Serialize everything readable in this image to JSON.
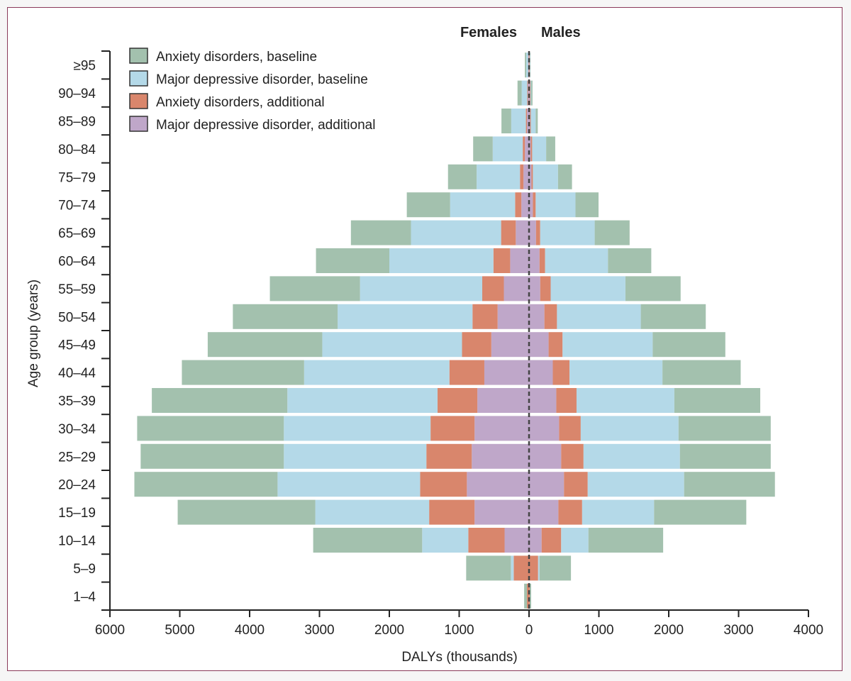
{
  "chart_data": {
    "type": "bar",
    "orientation": "horizontal-population-pyramid",
    "title": "",
    "xlabel": "DALYs (thousands)",
    "ylabel": "Age group (years)",
    "side_labels": {
      "left": "Females",
      "right": "Males"
    },
    "xlim": [
      -6000,
      4000
    ],
    "xticks": [
      -6000,
      -5000,
      -4000,
      -3000,
      -2000,
      -1000,
      0,
      1000,
      2000,
      3000,
      4000
    ],
    "xtick_labels": [
      "6000",
      "5000",
      "4000",
      "3000",
      "2000",
      "1000",
      "0",
      "1000",
      "2000",
      "3000",
      "4000"
    ],
    "categories": [
      "≥95",
      "90–94",
      "85–89",
      "80–84",
      "75–79",
      "70–74",
      "65–69",
      "60–64",
      "55–59",
      "50–54",
      "45–49",
      "40–44",
      "35–39",
      "30–34",
      "25–29",
      "20–24",
      "15–19",
      "10–14",
      "5–9",
      "1–4"
    ],
    "series": [
      {
        "name": "Major depressive disorder, additional",
        "color": "#bfa7c9",
        "females": [
          5,
          15,
          30,
          60,
          80,
          110,
          190,
          270,
          360,
          450,
          540,
          640,
          740,
          780,
          820,
          890,
          780,
          350,
          0,
          0
        ],
        "males": [
          5,
          10,
          15,
          25,
          35,
          55,
          100,
          150,
          160,
          220,
          280,
          340,
          390,
          430,
          460,
          500,
          420,
          180,
          0,
          0
        ]
      },
      {
        "name": "Anxiety disorders, additional",
        "color": "#d9866c",
        "females": [
          5,
          10,
          15,
          30,
          50,
          90,
          210,
          240,
          310,
          360,
          420,
          500,
          570,
          630,
          650,
          670,
          650,
          520,
          220,
          30
        ],
        "males": [
          5,
          10,
          10,
          20,
          20,
          40,
          60,
          80,
          150,
          180,
          200,
          240,
          290,
          310,
          320,
          340,
          340,
          280,
          130,
          10
        ]
      },
      {
        "name": "Major depressive disorder, baseline",
        "color": "#b4d9e8",
        "females": [
          30,
          80,
          210,
          430,
          620,
          930,
          1290,
          1490,
          1750,
          1930,
          2000,
          2080,
          2150,
          2100,
          2040,
          2040,
          1630,
          660,
          40,
          0
        ],
        "males": [
          5,
          10,
          70,
          200,
          360,
          570,
          780,
          900,
          1070,
          1200,
          1290,
          1330,
          1400,
          1400,
          1380,
          1380,
          1030,
          390,
          20,
          0
        ]
      },
      {
        "name": "Anxiety disorders, baseline",
        "color": "#a3c1ae",
        "females": [
          20,
          60,
          140,
          280,
          410,
          620,
          860,
          1050,
          1290,
          1500,
          1640,
          1750,
          1940,
          2100,
          2050,
          2050,
          1970,
          1560,
          640,
          40
        ],
        "males": [
          5,
          20,
          30,
          130,
          200,
          330,
          500,
          620,
          790,
          930,
          1040,
          1120,
          1230,
          1320,
          1300,
          1300,
          1320,
          1070,
          450,
          20
        ]
      }
    ],
    "legend": {
      "position": "top-left",
      "order": [
        "Anxiety disorders, baseline",
        "Major depressive disorder, baseline",
        "Anxiety disorders, additional",
        "Major depressive disorder, additional"
      ]
    }
  }
}
